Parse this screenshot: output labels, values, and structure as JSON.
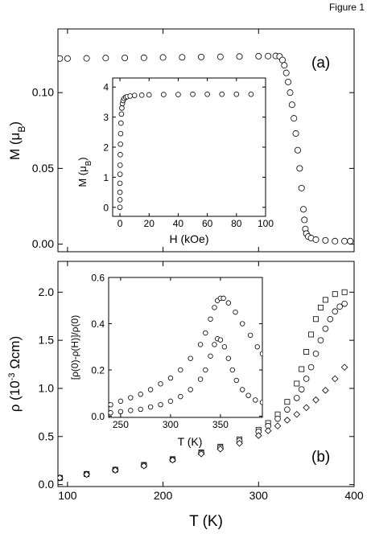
{
  "figure_label": "Figure 1",
  "chart_data": [
    {
      "type": "scatter",
      "panel_label": "(a)",
      "ylabel": "M (μB)",
      "xlabel": "",
      "xlim": [
        90,
        400
      ],
      "ylim": [
        -0.005,
        0.142
      ],
      "xticks": [
        100,
        200,
        300,
        400
      ],
      "yticks": [
        0.0,
        0.05,
        0.1
      ],
      "ytick_labels": [
        "0.00",
        "0.05",
        "0.10"
      ],
      "series": [
        {
          "marker": "circle",
          "points": [
            [
              92,
              0.1225
            ],
            [
              100,
              0.1225
            ],
            [
              120,
              0.1226
            ],
            [
              140,
              0.1228
            ],
            [
              160,
              0.1229
            ],
            [
              180,
              0.123
            ],
            [
              200,
              0.1232
            ],
            [
              220,
              0.1233
            ],
            [
              240,
              0.1235
            ],
            [
              260,
              0.1236
            ],
            [
              280,
              0.1238
            ],
            [
              300,
              0.124
            ],
            [
              310,
              0.1241
            ],
            [
              318,
              0.1242
            ],
            [
              322,
              0.1239
            ],
            [
              325,
              0.1215
            ],
            [
              327,
              0.118
            ],
            [
              329,
              0.113
            ],
            [
              331,
              0.107
            ],
            [
              333,
              0.1
            ],
            [
              335,
              0.092
            ],
            [
              337,
              0.083
            ],
            [
              339,
              0.073
            ],
            [
              341,
              0.062
            ],
            [
              343,
              0.05
            ],
            [
              345,
              0.037
            ],
            [
              347,
              0.023
            ],
            [
              348,
              0.016
            ],
            [
              349,
              0.01
            ],
            [
              350,
              0.007
            ],
            [
              352,
              0.005
            ],
            [
              355,
              0.004
            ],
            [
              360,
              0.003
            ],
            [
              370,
              0.0025
            ],
            [
              380,
              0.002
            ],
            [
              390,
              0.002
            ],
            [
              396,
              0.002
            ]
          ]
        }
      ]
    },
    {
      "type": "scatter",
      "inset": true,
      "ylabel": "M (μB)",
      "xlabel": "H (kOe)",
      "xlim": [
        -5,
        100
      ],
      "ylim": [
        -0.3,
        4.3
      ],
      "xticks": [
        0,
        20,
        40,
        60,
        80,
        100
      ],
      "yticks": [
        0,
        1,
        2,
        3,
        4
      ],
      "series": [
        {
          "marker": "circle",
          "points": [
            [
              0,
              0
            ],
            [
              0,
              0.25
            ],
            [
              0,
              0.5
            ],
            [
              0,
              0.8
            ],
            [
              0.05,
              1.1
            ],
            [
              0.1,
              1.4
            ],
            [
              0.2,
              1.75
            ],
            [
              0.35,
              2.1
            ],
            [
              0.5,
              2.45
            ],
            [
              0.7,
              2.8
            ],
            [
              1,
              3.1
            ],
            [
              1.3,
              3.3
            ],
            [
              1.7,
              3.45
            ],
            [
              2.2,
              3.55
            ],
            [
              3,
              3.62
            ],
            [
              4,
              3.66
            ],
            [
              5,
              3.68
            ],
            [
              7,
              3.7
            ],
            [
              10,
              3.72
            ],
            [
              15,
              3.73
            ],
            [
              20,
              3.74
            ],
            [
              30,
              3.75
            ],
            [
              40,
              3.75
            ],
            [
              50,
              3.76
            ],
            [
              60,
              3.76
            ],
            [
              70,
              3.76
            ],
            [
              80,
              3.76
            ],
            [
              90,
              3.76
            ]
          ]
        }
      ]
    },
    {
      "type": "scatter",
      "panel_label": "(b)",
      "ylabel": "ρ (10⁻³ Ωcm)",
      "xlabel": "T (K)",
      "xlim": [
        90,
        400
      ],
      "ylim": [
        -0.02,
        2.32
      ],
      "xticks": [
        100,
        200,
        300,
        400
      ],
      "yticks": [
        0.0,
        0.5,
        1.0,
        1.5,
        2.0
      ],
      "ytick_labels": [
        "0.0",
        "0.5",
        "1.0",
        "1.5",
        "2.0"
      ],
      "series": [
        {
          "marker": "square",
          "points": [
            [
              92,
              0.07
            ],
            [
              120,
              0.11
            ],
            [
              150,
              0.155
            ],
            [
              180,
              0.205
            ],
            [
              210,
              0.265
            ],
            [
              240,
              0.335
            ],
            [
              260,
              0.395
            ],
            [
              280,
              0.47
            ],
            [
              300,
              0.57
            ],
            [
              310,
              0.64
            ],
            [
              320,
              0.73
            ],
            [
              330,
              0.86
            ],
            [
              340,
              1.05
            ],
            [
              345,
              1.2
            ],
            [
              350,
              1.38
            ],
            [
              355,
              1.56
            ],
            [
              360,
              1.72
            ],
            [
              365,
              1.84
            ],
            [
              370,
              1.92
            ],
            [
              380,
              1.98
            ],
            [
              390,
              2.0
            ]
          ]
        },
        {
          "marker": "circle",
          "points": [
            [
              92,
              0.07
            ],
            [
              120,
              0.11
            ],
            [
              150,
              0.155
            ],
            [
              180,
              0.2
            ],
            [
              210,
              0.26
            ],
            [
              240,
              0.33
            ],
            [
              260,
              0.385
            ],
            [
              280,
              0.455
            ],
            [
              300,
              0.55
            ],
            [
              310,
              0.61
            ],
            [
              320,
              0.685
            ],
            [
              330,
              0.78
            ],
            [
              340,
              0.9
            ],
            [
              345,
              0.99
            ],
            [
              350,
              1.1
            ],
            [
              355,
              1.22
            ],
            [
              360,
              1.36
            ],
            [
              365,
              1.5
            ],
            [
              370,
              1.62
            ],
            [
              375,
              1.72
            ],
            [
              380,
              1.8
            ],
            [
              385,
              1.85
            ],
            [
              390,
              1.88
            ]
          ]
        },
        {
          "marker": "diamond",
          "points": [
            [
              92,
              0.07
            ],
            [
              120,
              0.105
            ],
            [
              150,
              0.15
            ],
            [
              180,
              0.195
            ],
            [
              210,
              0.255
            ],
            [
              240,
              0.32
            ],
            [
              260,
              0.37
            ],
            [
              280,
              0.43
            ],
            [
              300,
              0.51
            ],
            [
              310,
              0.56
            ],
            [
              320,
              0.61
            ],
            [
              330,
              0.67
            ],
            [
              340,
              0.73
            ],
            [
              350,
              0.8
            ],
            [
              360,
              0.88
            ],
            [
              370,
              0.98
            ],
            [
              380,
              1.1
            ],
            [
              390,
              1.22
            ]
          ]
        }
      ]
    },
    {
      "type": "scatter",
      "inset": true,
      "ylabel": "[ρ(0)-ρ(H)]/ρ(0)",
      "xlabel": "T (K)",
      "xlim": [
        238,
        392
      ],
      "ylim": [
        -0.005,
        0.6
      ],
      "xticks": [
        250,
        300,
        350
      ],
      "yticks": [
        0.0,
        0.2,
        0.4,
        0.6
      ],
      "ytick_labels": [
        "0.0",
        "0.2",
        "0.4",
        "0.6"
      ],
      "series": [
        {
          "marker": "circle",
          "points": [
            [
              240,
              0.05
            ],
            [
              250,
              0.065
            ],
            [
              260,
              0.08
            ],
            [
              270,
              0.095
            ],
            [
              280,
              0.115
            ],
            [
              290,
              0.14
            ],
            [
              300,
              0.165
            ],
            [
              310,
              0.2
            ],
            [
              320,
              0.25
            ],
            [
              330,
              0.31
            ],
            [
              335,
              0.36
            ],
            [
              340,
              0.42
            ],
            [
              344,
              0.47
            ],
            [
              347,
              0.5
            ],
            [
              350,
              0.51
            ],
            [
              353,
              0.51
            ],
            [
              358,
              0.49
            ],
            [
              365,
              0.45
            ],
            [
              372,
              0.4
            ],
            [
              380,
              0.35
            ],
            [
              387,
              0.3
            ],
            [
              392,
              0.27
            ]
          ]
        },
        {
          "marker": "circle",
          "points": [
            [
              240,
              0.015
            ],
            [
              250,
              0.02
            ],
            [
              260,
              0.025
            ],
            [
              270,
              0.03
            ],
            [
              280,
              0.04
            ],
            [
              290,
              0.05
            ],
            [
              300,
              0.065
            ],
            [
              310,
              0.085
            ],
            [
              320,
              0.115
            ],
            [
              330,
              0.16
            ],
            [
              335,
              0.2
            ],
            [
              340,
              0.26
            ],
            [
              344,
              0.31
            ],
            [
              347,
              0.335
            ],
            [
              350,
              0.33
            ],
            [
              354,
              0.3
            ],
            [
              358,
              0.25
            ],
            [
              362,
              0.2
            ],
            [
              366,
              0.155
            ],
            [
              372,
              0.115
            ],
            [
              378,
              0.09
            ],
            [
              385,
              0.07
            ],
            [
              392,
              0.06
            ]
          ]
        }
      ]
    }
  ]
}
